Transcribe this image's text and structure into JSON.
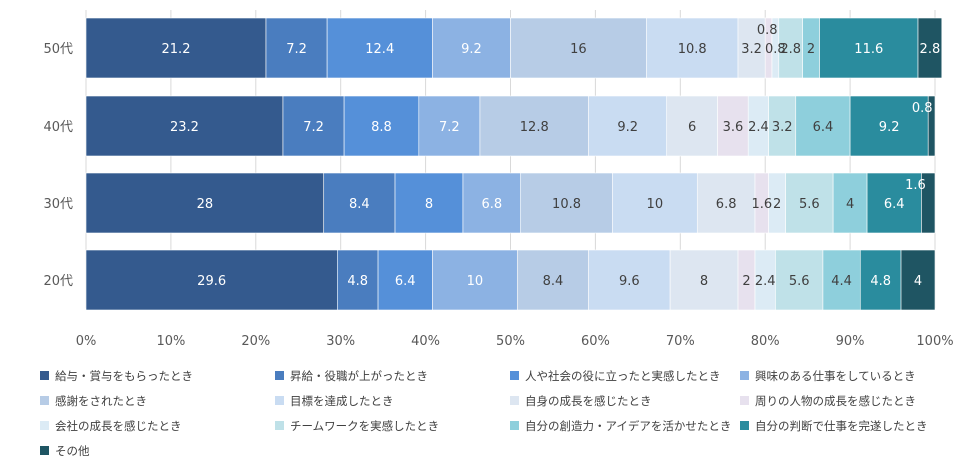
{
  "chart_data": {
    "type": "bar",
    "orientation": "horizontal",
    "stacked": "percent",
    "categories": [
      "50代",
      "40代",
      "30代",
      "20代"
    ],
    "x_ticks": [
      "0%",
      "10%",
      "20%",
      "30%",
      "40%",
      "50%",
      "60%",
      "70%",
      "80%",
      "90%",
      "100%"
    ],
    "xlim": [
      0,
      100
    ],
    "grid": true,
    "legend_position": "bottom",
    "series": [
      {
        "name": "給与・賞与をもらったとき",
        "color": "#345a8e",
        "values": [
          21.2,
          23.2,
          28,
          29.6
        ]
      },
      {
        "name": "昇給・役職が上がったとき",
        "color": "#4a7dbf",
        "values": [
          7.2,
          7.2,
          8.4,
          4.8
        ]
      },
      {
        "name": "人や社会の役に立ったと実感したとき",
        "color": "#5590d9",
        "values": [
          12.4,
          8.8,
          8,
          6.4
        ]
      },
      {
        "name": "興味のある仕事をしているとき",
        "color": "#8cb2e3",
        "values": [
          9.2,
          7.2,
          6.8,
          10
        ]
      },
      {
        "name": "感謝をされたとき",
        "color": "#b7cce6",
        "values": [
          16,
          12.8,
          10.8,
          8.4
        ]
      },
      {
        "name": "目標を達成したとき",
        "color": "#c9dcf2",
        "values": [
          10.8,
          9.2,
          10,
          9.6
        ]
      },
      {
        "name": "自身の成長を感じたとき",
        "color": "#dde6f1",
        "values": [
          3.2,
          6,
          6.8,
          8
        ]
      },
      {
        "name": "周りの人物の成長を感じたとき",
        "color": "#e7e1ee",
        "values": [
          0.8,
          3.6,
          1.6,
          2
        ]
      },
      {
        "name": "会社の成長を感じたとき",
        "color": "#dcebf5",
        "values": [
          0.8,
          2.4,
          2,
          2.4
        ]
      },
      {
        "name": "チームワークを実感したとき",
        "color": "#bfe1e8",
        "values": [
          2.8,
          3.2,
          5.6,
          5.6
        ]
      },
      {
        "name": "自分の創造力・アイデアを活かせたとき",
        "color": "#8ecfdc",
        "values": [
          2,
          6.4,
          4,
          4.4
        ]
      },
      {
        "name": "自分の判断で仕事を完遂したとき",
        "color": "#2a8c9e",
        "values": [
          11.6,
          9.2,
          6.4,
          4.8
        ]
      },
      {
        "name": "その他",
        "color": "#1f5563",
        "values": [
          2.8,
          0.8,
          1.6,
          4
        ]
      }
    ],
    "data_labels": [
      [
        "21.2",
        "7.2",
        "12.4",
        "9.2",
        "16",
        "10.8",
        "3.2",
        "0.8",
        "0.8",
        "2.8",
        "2",
        "11.6",
        "2.8"
      ],
      [
        "23.2",
        "7.2",
        "8.8",
        "7.2",
        "12.8",
        "9.2",
        "6",
        "3.6",
        "2.4",
        "3.2",
        "6.4",
        "9.2",
        "0.8"
      ],
      [
        "28",
        "8.4",
        "8",
        "6.8",
        "10.8",
        "10",
        "6.8",
        "1.6",
        "2",
        "5.6",
        "4",
        "6.4",
        "1.6"
      ],
      [
        "29.6",
        "4.8",
        "6.4",
        "10",
        "8.4",
        "9.6",
        "8",
        "2",
        "2.4",
        "5.6",
        "4.4",
        "4.8",
        "4"
      ]
    ]
  }
}
